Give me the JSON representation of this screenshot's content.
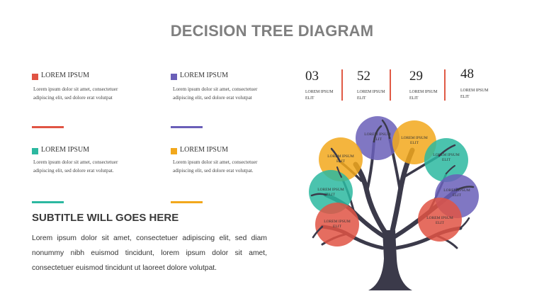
{
  "title": "DECISION TREE DIAGRAM",
  "items": [
    {
      "title": "LOREM IPSUM",
      "line1": "Lorem ipsum dolor sit amet, consectetuer",
      "line2": "adipiscing elit, sed dolore erat volutpat",
      "color": "#e05444"
    },
    {
      "title": "LOREM IPSUM",
      "line1": "Lorem ipsum dolor sit amet, consectetuer",
      "line2": "adipiscing elit, sed dolore erat volutpat",
      "color": "#6a5fb8"
    },
    {
      "title": "LOREM IPSUM",
      "line1": "Lorem ipsum dolor sit amet, consectetuer",
      "line2": "adipiscing elit, sed dolore erat volutpat.",
      "color": "#2cb8a0"
    },
    {
      "title": "LOREM IPSUM",
      "line1": "Lorem ipsum dolor sit amet, consectetuer",
      "line2": "adipiscing elit, sed dolore erat volutpat.",
      "color": "#f2a81c"
    }
  ],
  "subtitle": "SUBTITLE WILL GOES HERE",
  "paragraph": {
    "line1": "Lorem ipsum dolor sit amet, consectetuer adipiscing elit, sed diam",
    "line2": "nonummy nibh euismod tincidunt, lorem ipsum dolor sit amet,",
    "line3": "consectetuer euismod tincidunt ut laoreet dolore volutpat."
  },
  "stats": [
    {
      "value": "03",
      "label1": "LOREM IPSUM",
      "label2": "ELIT"
    },
    {
      "value": "52",
      "label1": "LOREM IPSUM",
      "label2": "ELIT"
    },
    {
      "value": "29",
      "label1": "LOREM IPSUM",
      "label2": "ELIT"
    },
    {
      "value": "48",
      "label1": "LOREM IPSUM",
      "label2": "ELIT"
    }
  ],
  "tree_circles": [
    {
      "label1": "LOREM IPSUM",
      "label2": "ELIT",
      "color": "#6a5fb8"
    },
    {
      "label1": "LOREM IPSUM",
      "label2": "ELIT",
      "color": "#f2a81c"
    },
    {
      "label1": "LOREM IPSUM",
      "label2": "ELIT",
      "color": "#f2a81c"
    },
    {
      "label1": "LOREM IPSUM",
      "label2": "ELIT",
      "color": "#2cb8a0"
    },
    {
      "label1": "LOREM IPSUM",
      "label2": "ELIT",
      "color": "#2cb8a0"
    },
    {
      "label1": "LOREM IPSUM",
      "label2": "ELIT",
      "color": "#6a5fb8"
    },
    {
      "label1": "LOREM IPSUM",
      "label2": "ELIT",
      "color": "#e05444"
    },
    {
      "label1": "LOREM IPSUM",
      "label2": "ELIT",
      "color": "#e05444"
    }
  ],
  "colors": {
    "trunk": "#3b3a4a",
    "divider": "#e05a45",
    "title": "#7f7f7f"
  }
}
